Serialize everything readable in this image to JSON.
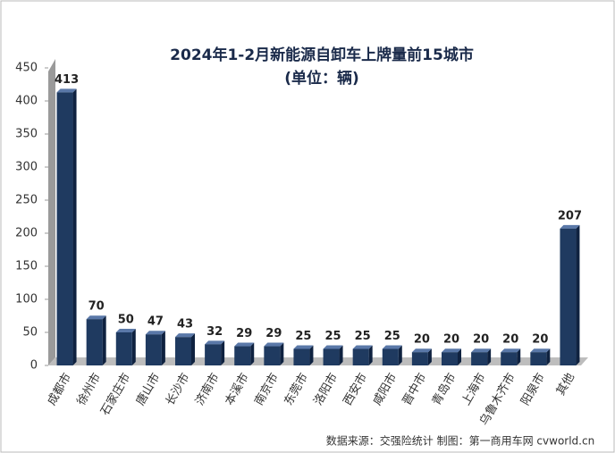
{
  "chart_data": {
    "type": "bar",
    "title": "2024年1-2月新能源自卸车上牌量前15城市",
    "subtitle": "(单位：辆)",
    "categories": [
      "成都市",
      "徐州市",
      "石家庄市",
      "唐山市",
      "长沙市",
      "济南市",
      "本溪市",
      "南京市",
      "东莞市",
      "洛阳市",
      "西安市",
      "咸阳市",
      "晋中市",
      "青岛市",
      "上海市",
      "乌鲁木齐市",
      "阳泉市",
      "其他"
    ],
    "values": [
      413,
      70,
      50,
      47,
      43,
      32,
      29,
      29,
      25,
      25,
      25,
      25,
      20,
      20,
      20,
      20,
      20,
      207
    ],
    "color": "#1f3a60",
    "ylim": [
      0,
      450
    ],
    "yticks": [
      0,
      50,
      100,
      150,
      200,
      250,
      300,
      350,
      400,
      450
    ],
    "source": "数据来源：交强险统计 制图：第一商用车网 cvworld.cn"
  }
}
